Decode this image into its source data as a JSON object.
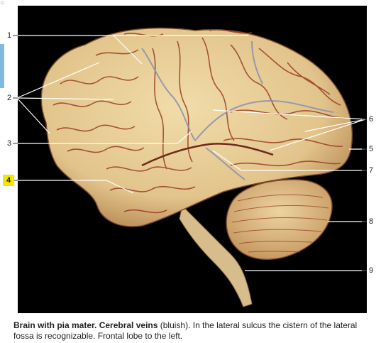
{
  "labels": {
    "n1": "1",
    "n2": "2",
    "n3": "3",
    "n4": "4",
    "n5": "5",
    "n6": "6",
    "n7": "7",
    "n8": "8",
    "n9": "9"
  },
  "caption": {
    "bold": "Brain with pia mater. Cerebral veins",
    "rest": " (bluish). In the lateral sulcus the cistern of the lateral fossa is recognizable. Frontal lobe to the left."
  },
  "colors": {
    "photo_background": "#000000",
    "brain": "#e7cf9a",
    "gyri_lines": "#9a3c22",
    "veins": "#8a8fae",
    "highlight": "#f4e600",
    "side_tab": "#7fb9e0"
  }
}
